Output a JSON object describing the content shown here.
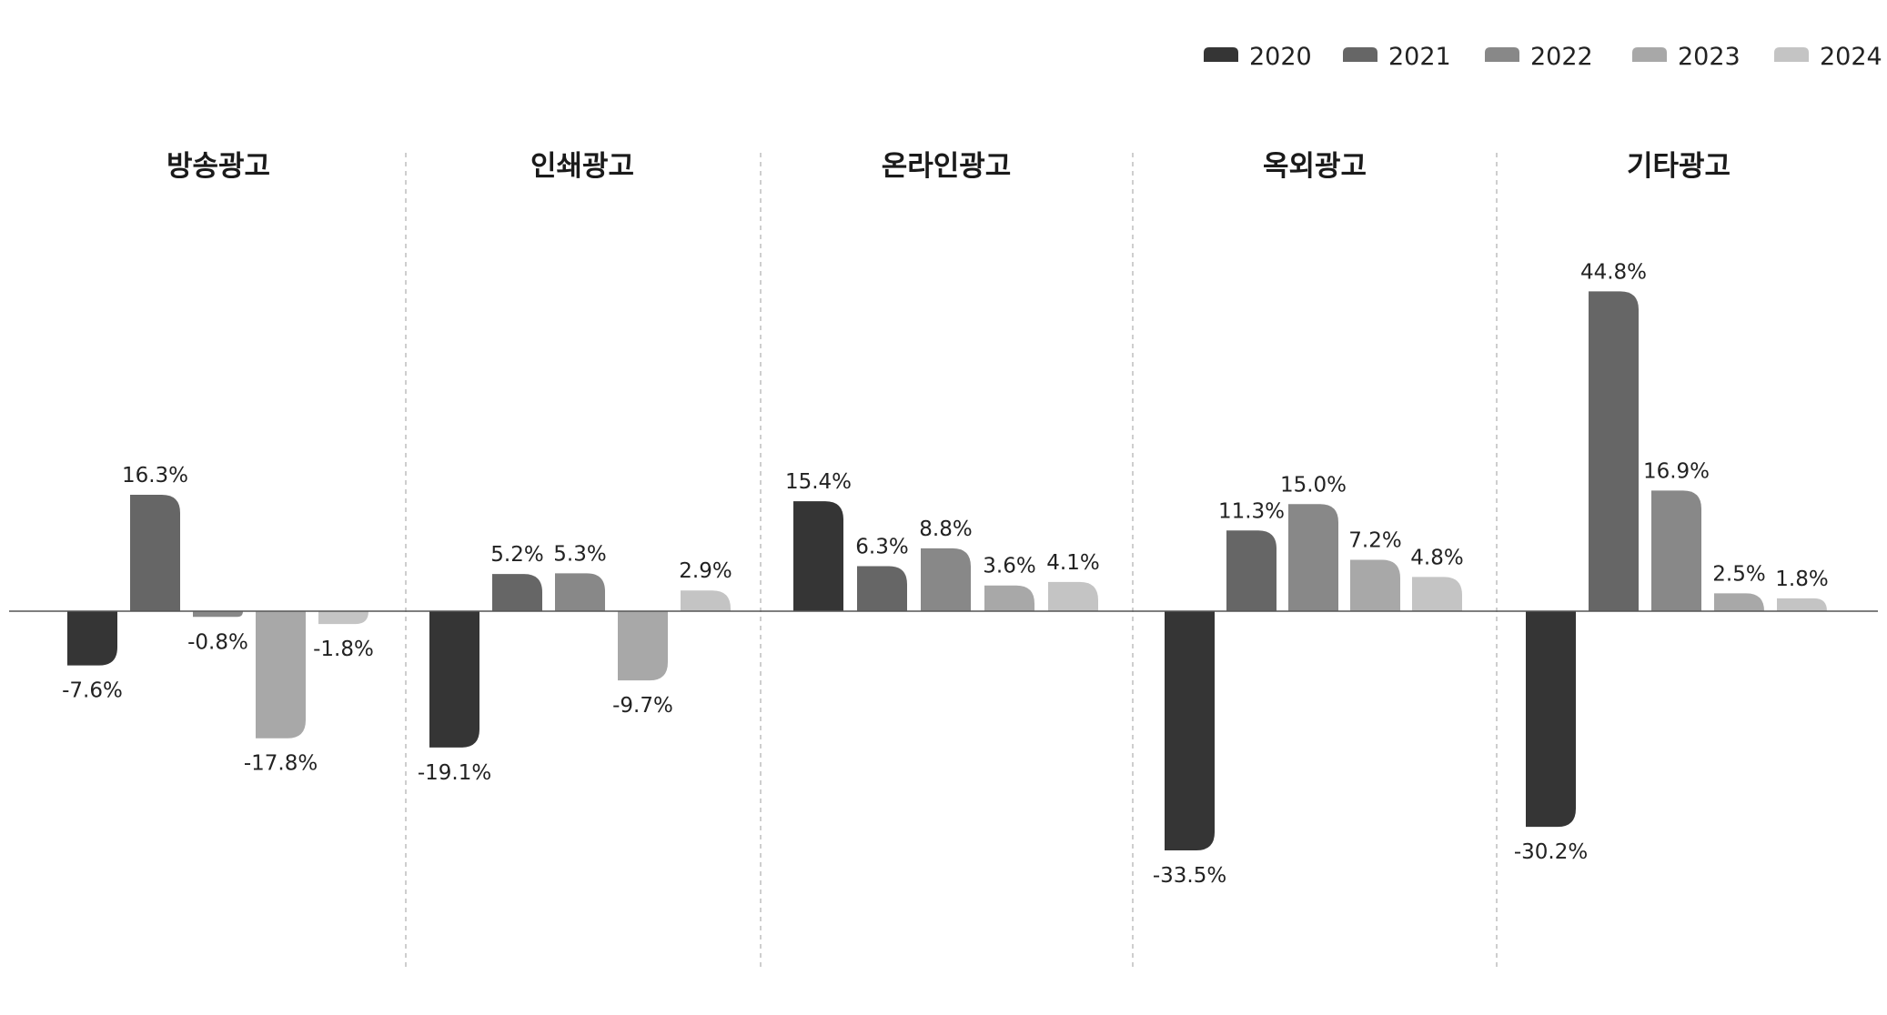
{
  "chart_data": {
    "type": "bar",
    "unit": "%",
    "legend_position": "top-right",
    "grid": false,
    "ylim": [
      -36,
      48
    ],
    "categories": [
      "방송광고",
      "인쇄광고",
      "온라인광고",
      "옥외광고",
      "기타광고"
    ],
    "series": [
      {
        "name": "2020",
        "color": "#353535",
        "values": [
          -7.6,
          -19.1,
          15.4,
          -33.5,
          -30.2
        ],
        "labels": [
          "-7.6%",
          "-19.1%",
          "15.4%",
          "-33.5%",
          "-30.2%"
        ]
      },
      {
        "name": "2021",
        "color": "#666666",
        "values": [
          16.3,
          5.2,
          6.3,
          11.3,
          44.8
        ],
        "labels": [
          "16.3%",
          "5.2%",
          "6.3%",
          "11.3%",
          "44.8%"
        ]
      },
      {
        "name": "2022",
        "color": "#888888",
        "values": [
          -0.8,
          5.3,
          8.8,
          15.0,
          16.9
        ],
        "labels": [
          "-0.8%",
          "5.3%",
          "8.8%",
          "15.0%",
          "16.9%"
        ]
      },
      {
        "name": "2023",
        "color": "#a8a8a8",
        "values": [
          -17.8,
          -9.7,
          3.6,
          7.2,
          2.5
        ],
        "labels": [
          "-17.8%",
          "-9.7%",
          "3.6%",
          "7.2%",
          "2.5%"
        ]
      },
      {
        "name": "2024",
        "color": "#c4c4c4",
        "values": [
          -1.8,
          2.9,
          4.1,
          4.8,
          1.8
        ],
        "labels": [
          "-1.8%",
          "2.9%",
          "4.1%",
          "4.8%",
          "1.8%"
        ]
      }
    ]
  }
}
